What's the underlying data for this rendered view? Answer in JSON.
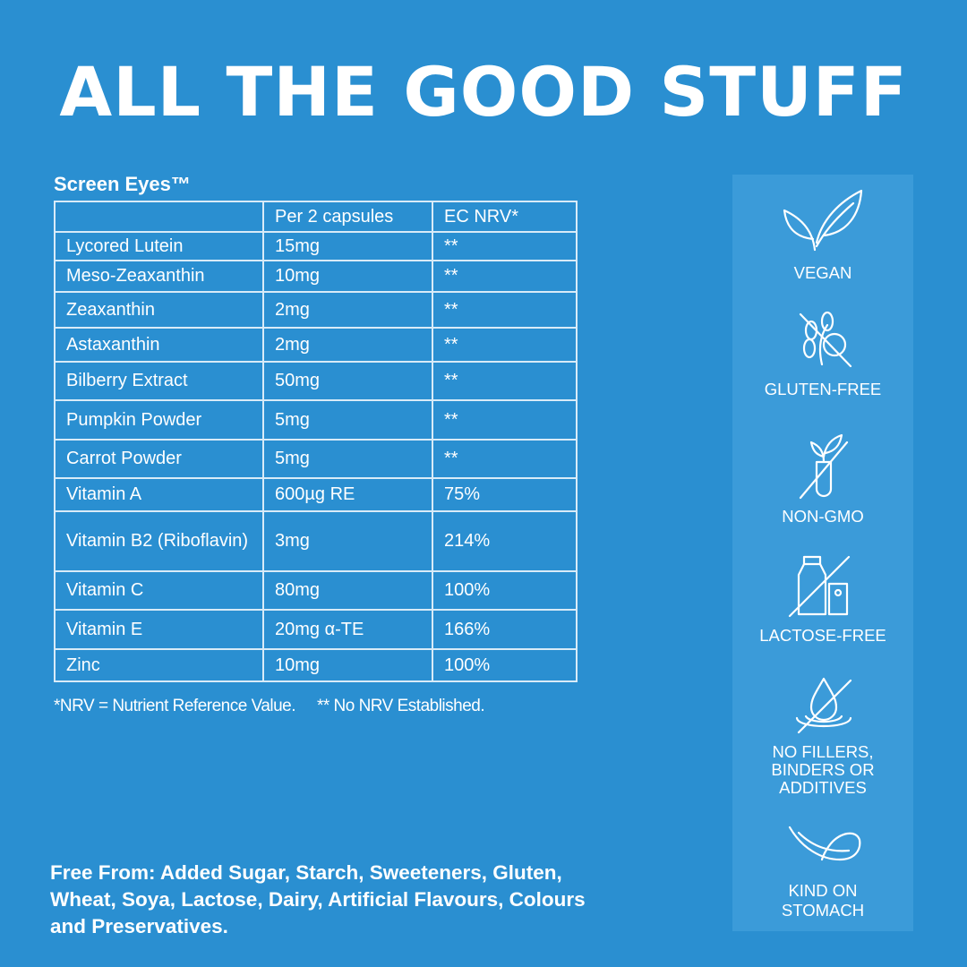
{
  "header": {
    "title": "ALL THE GOOD STUFF"
  },
  "table": {
    "product": "Screen Eyes™",
    "columns": [
      "Per 2 capsules",
      "EC NRV*"
    ],
    "rows": [
      [
        "Lycored Lutein",
        "15mg",
        "**"
      ],
      [
        "Meso-Zeaxanthin",
        "10mg",
        "**"
      ],
      [
        "Zeaxanthin",
        "2mg",
        "**"
      ],
      [
        "Astaxanthin",
        "2mg",
        "**"
      ],
      [
        "Bilberry Extract",
        "50mg",
        "**"
      ],
      [
        "Pumpkin Powder",
        "5mg",
        "**"
      ],
      [
        "Carrot Powder",
        "5mg",
        "**"
      ],
      [
        "Vitamin A",
        "600µg RE",
        "75%"
      ],
      [
        "Vitamin B2 (Riboflavin)",
        "3mg",
        "214%"
      ],
      [
        "Vitamin C",
        "80mg",
        "100%"
      ],
      [
        "Vitamin E",
        "20mg α-TE",
        "166%"
      ],
      [
        "Zinc",
        "10mg",
        "100%"
      ]
    ],
    "footnotes": [
      "*NRV = Nutrient Reference Value.",
      "** No NRV Established."
    ]
  },
  "free_from": [
    "Free From: Added Sugar, Starch, Sweeteners, Gluten,",
    "Wheat, Soya, Lactose, Dairy, Artificial Flavours, Colours",
    "and Preservatives."
  ],
  "badges": [
    {
      "label": [
        "VEGAN"
      ]
    },
    {
      "label": [
        "GLUTEN-FREE"
      ]
    },
    {
      "label": [
        "NON-GMO"
      ]
    },
    {
      "label": [
        "LACTOSE-FREE"
      ]
    },
    {
      "label": [
        "NO FILLERS,",
        "BINDERS OR",
        "ADDITIVES"
      ]
    },
    {
      "label": [
        "KIND ON",
        "STOMACH"
      ]
    }
  ]
}
